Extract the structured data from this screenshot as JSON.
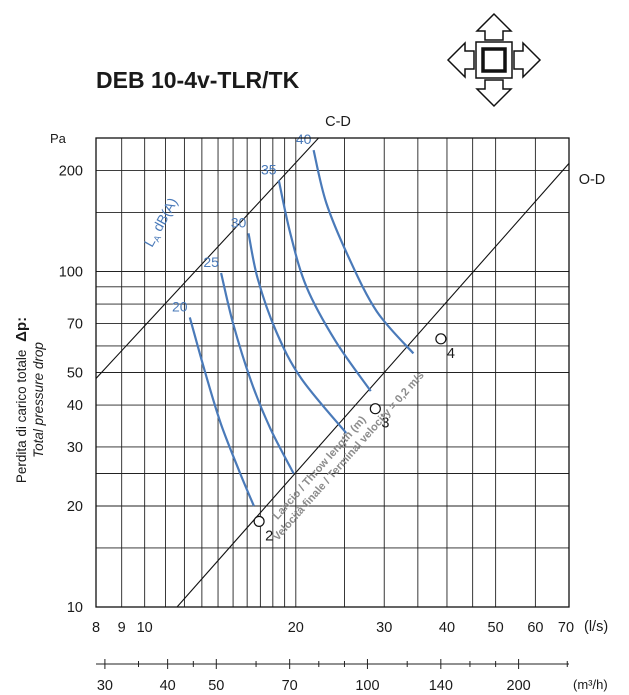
{
  "chart_data": {
    "type": "line",
    "title": "DEB 10-4v-TLR/TK",
    "y_unit": "Pa",
    "ylabel_it": "Perdita di carico totale",
    "ylabel_symbol": "Δp:",
    "ylabel_en": "Total pressure drop",
    "x_unit_primary": "(l/s)",
    "x_unit_secondary": "(m³/h)",
    "x_scale": "log",
    "y_scale": "log",
    "xlim": [
      8,
      70
    ],
    "ylim": [
      10,
      250
    ],
    "grid": true,
    "y_tick_labels": [
      {
        "v": 10,
        "label": "10"
      },
      {
        "v": 20,
        "label": "20"
      },
      {
        "v": 30,
        "label": "30"
      },
      {
        "v": 40,
        "label": "40"
      },
      {
        "v": 50,
        "label": "50"
      },
      {
        "v": 70,
        "label": "70"
      },
      {
        "v": 100,
        "label": "100"
      },
      {
        "v": 200,
        "label": "200"
      }
    ],
    "y_grid": [
      10,
      15,
      20,
      25,
      30,
      40,
      50,
      60,
      70,
      80,
      90,
      100,
      150,
      200
    ],
    "x_ticks_ls": [
      {
        "v": 8,
        "label": "8"
      },
      {
        "v": 9,
        "label": "9"
      },
      {
        "v": 10,
        "label": "10"
      },
      {
        "v": 20,
        "label": "20"
      },
      {
        "v": 30,
        "label": "30"
      },
      {
        "v": 40,
        "label": "40"
      },
      {
        "v": 50,
        "label": "50"
      },
      {
        "v": 60,
        "label": "60"
      },
      {
        "v": 70,
        "label": "70"
      }
    ],
    "x_grid": [
      8,
      9,
      10,
      11,
      12,
      13,
      14,
      15,
      16,
      17,
      18,
      19,
      20,
      25,
      30,
      35,
      40,
      45,
      50,
      60,
      70
    ],
    "x_ticks_m3h": [
      {
        "v": 30,
        "label": "30"
      },
      {
        "v": 40,
        "label": "40"
      },
      {
        "v": 50,
        "label": "50"
      },
      {
        "v": 70,
        "label": "70"
      },
      {
        "v": 100,
        "label": "100"
      },
      {
        "v": 140,
        "label": "140"
      },
      {
        "v": 200,
        "label": "200"
      }
    ],
    "x_minor_m3h": [
      25,
      35,
      45,
      60,
      80,
      90,
      120,
      160,
      180,
      250
    ],
    "reference_lines": [
      {
        "label": "C-D",
        "points": [
          [
            8,
            48
          ],
          [
            22.2,
            250
          ]
        ]
      },
      {
        "label": "O-D",
        "points": [
          [
            11.6,
            10
          ],
          [
            70,
            210
          ]
        ]
      }
    ],
    "noise_label": "LA dB(A)",
    "noise_label_parts": {
      "main": "L",
      "sub": "A",
      "unit": " dB(A)"
    },
    "noise_color": "#4a7ab9",
    "noise_series": [
      {
        "name": "20",
        "points": [
          [
            12.3,
            73
          ],
          [
            13.2,
            50
          ],
          [
            14.2,
            35
          ],
          [
            15.5,
            25
          ],
          [
            16.5,
            20
          ]
        ]
      },
      {
        "name": "25",
        "points": [
          [
            14.2,
            99
          ],
          [
            15.0,
            70
          ],
          [
            16.3,
            47
          ],
          [
            17.8,
            34
          ],
          [
            19.8,
            25
          ]
        ]
      },
      {
        "name": "30",
        "points": [
          [
            16.1,
            130
          ],
          [
            16.8,
            95
          ],
          [
            18.3,
            66
          ],
          [
            20.5,
            48
          ],
          [
            25.2,
            33
          ]
        ]
      },
      {
        "name": "35",
        "points": [
          [
            18.5,
            187
          ],
          [
            19.5,
            130
          ],
          [
            21.0,
            90
          ],
          [
            24.0,
            62
          ],
          [
            28.2,
            44
          ]
        ]
      },
      {
        "name": "40",
        "points": [
          [
            21.7,
            230
          ],
          [
            23.0,
            160
          ],
          [
            25.5,
            110
          ],
          [
            29.0,
            76
          ],
          [
            34.3,
            57
          ]
        ]
      }
    ],
    "throw_points": [
      {
        "label": "2",
        "x": 16.9,
        "y": 18
      },
      {
        "label": "3",
        "x": 28.8,
        "y": 39
      },
      {
        "label": "4",
        "x": 38.9,
        "y": 63
      }
    ],
    "annotation_line1": "Lancio / Throw length (m)",
    "annotation_line2": "Velocità finale / Terminal velocity = 0,2 m/s"
  }
}
